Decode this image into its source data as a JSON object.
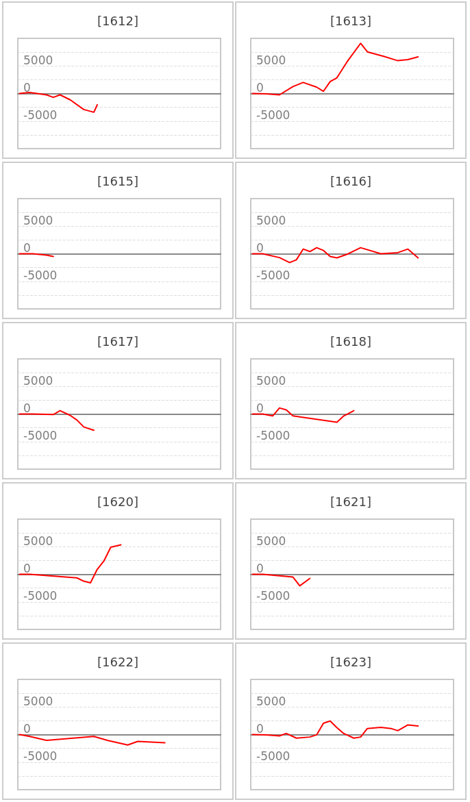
{
  "chart_data": [
    {
      "type": "line",
      "title": "[1612]",
      "categories": [
        null,
        null,
        null,
        null,
        null,
        null,
        null,
        null,
        null,
        null,
        null,
        null,
        null,
        null,
        null,
        null,
        null,
        null,
        null,
        null,
        null,
        null,
        null,
        null,
        null,
        null,
        null,
        null,
        null,
        null,
        null,
        null,
        null,
        null,
        null,
        null,
        null,
        null,
        null,
        null,
        null,
        null,
        null,
        null,
        null,
        null,
        null,
        null,
        null,
        null,
        null,
        null,
        null,
        null,
        null,
        null,
        null,
        null,
        null,
        null
      ],
      "values": [
        0,
        null,
        null,
        200,
        null,
        null,
        null,
        null,
        -250,
        null,
        -700,
        null,
        -250,
        null,
        null,
        -1150,
        null,
        null,
        null,
        -2900,
        null,
        null,
        -3400,
        -2050,
        null,
        null,
        null,
        null,
        null,
        null,
        null,
        null,
        null,
        null,
        null,
        null,
        null,
        null,
        null,
        null,
        null,
        null,
        null,
        null,
        null,
        null,
        null,
        null,
        null,
        null,
        null,
        null,
        null,
        null,
        null,
        null,
        null,
        null,
        null,
        null
      ],
      "color": "#ff0000",
      "ylim": [
        -10000,
        10000
      ],
      "yticks": [
        {
          "value": -7500,
          "label": null
        },
        -5000,
        {
          "value": -2500,
          "label": null
        },
        0,
        {
          "value": 2500,
          "label": null
        },
        5000,
        {
          "value": 7500,
          "label": null
        }
      ],
      "grid": "y",
      "tick_labels": "y"
    },
    {
      "type": "line",
      "title": "[1613]",
      "categories": [
        null,
        null,
        null,
        null,
        null,
        null,
        null,
        null,
        null,
        null,
        null,
        null,
        null,
        null,
        null,
        null,
        null,
        null,
        null,
        null,
        null,
        null,
        null,
        null,
        null,
        null,
        null,
        null,
        null,
        null,
        null,
        null,
        null,
        null,
        null,
        null,
        null,
        null,
        null,
        null,
        null,
        null,
        null,
        null,
        null,
        null,
        null,
        null,
        null,
        null,
        null,
        null,
        null,
        null,
        null,
        null,
        null,
        null,
        null,
        null
      ],
      "values": [
        0,
        null,
        null,
        null,
        -50,
        null,
        null,
        null,
        -250,
        null,
        null,
        null,
        1250,
        null,
        null,
        2000,
        null,
        null,
        null,
        1150,
        null,
        400,
        null,
        2150,
        null,
        2850,
        null,
        null,
        5750,
        null,
        null,
        null,
        9100,
        null,
        7550,
        null,
        null,
        null,
        null,
        6700,
        null,
        null,
        null,
        5950,
        null,
        null,
        6150,
        null,
        null,
        6650,
        null,
        null,
        null,
        null,
        null,
        null,
        null,
        null,
        null,
        null
      ],
      "color": "#ff0000",
      "ylim": [
        -10000,
        10000
      ],
      "yticks": [
        {
          "value": -7500,
          "label": null
        },
        -5000,
        {
          "value": -2500,
          "label": null
        },
        0,
        {
          "value": 2500,
          "label": null
        },
        5000,
        {
          "value": 7500,
          "label": null
        }
      ],
      "grid": "y",
      "tick_labels": "y"
    },
    {
      "type": "line",
      "title": "[1615]",
      "categories": [
        null,
        null,
        null,
        null,
        null,
        null,
        null,
        null,
        null,
        null,
        null,
        null,
        null,
        null,
        null,
        null,
        null,
        null,
        null,
        null,
        null,
        null,
        null,
        null,
        null,
        null,
        null,
        null,
        null,
        null,
        null,
        null,
        null,
        null,
        null,
        null,
        null,
        null,
        null,
        null,
        null,
        null,
        null,
        null,
        null,
        null,
        null,
        null,
        null,
        null,
        null,
        null,
        null,
        null,
        null,
        null,
        null,
        null,
        null,
        null
      ],
      "values": [
        0,
        null,
        null,
        null,
        0,
        null,
        null,
        null,
        -250,
        null,
        -500,
        null,
        null,
        null,
        null,
        null,
        null,
        null,
        null,
        null,
        null,
        null,
        null,
        null,
        null,
        null,
        null,
        null,
        null,
        null,
        null,
        null,
        null,
        null,
        null,
        null,
        null,
        null,
        null,
        null,
        null,
        null,
        null,
        null,
        null,
        null,
        null,
        null,
        null,
        null,
        null,
        null,
        null,
        null,
        null,
        null,
        null,
        null,
        null,
        null
      ],
      "color": "#ff0000",
      "ylim": [
        -10000,
        10000
      ],
      "yticks": [
        {
          "value": -7500,
          "label": null
        },
        -5000,
        {
          "value": -2500,
          "label": null
        },
        0,
        {
          "value": 2500,
          "label": null
        },
        5000,
        {
          "value": 7500,
          "label": null
        }
      ],
      "grid": "y",
      "tick_labels": "y"
    },
    {
      "type": "line",
      "title": "[1616]",
      "categories": [
        null,
        null,
        null,
        null,
        null,
        null,
        null,
        null,
        null,
        null,
        null,
        null,
        null,
        null,
        null,
        null,
        null,
        null,
        null,
        null,
        null,
        null,
        null,
        null,
        null,
        null,
        null,
        null,
        null,
        null,
        null,
        null,
        null,
        null,
        null,
        null,
        null,
        null,
        null,
        null,
        null,
        null,
        null,
        null,
        null,
        null,
        null,
        null,
        null,
        null,
        null,
        null,
        null,
        null,
        null,
        null,
        null,
        null,
        null,
        null
      ],
      "values": [
        0,
        null,
        null,
        0,
        null,
        null,
        null,
        null,
        -700,
        null,
        null,
        -1600,
        null,
        -1100,
        null,
        850,
        null,
        400,
        null,
        1100,
        null,
        600,
        null,
        -500,
        null,
        -750,
        null,
        null,
        -100,
        null,
        null,
        null,
        1100,
        null,
        null,
        null,
        null,
        null,
        0,
        null,
        null,
        null,
        null,
        200,
        null,
        null,
        850,
        null,
        null,
        -750,
        null,
        null,
        null,
        null,
        null,
        null,
        null,
        null,
        null,
        null
      ],
      "color": "#ff0000",
      "ylim": [
        -10000,
        10000
      ],
      "yticks": [
        {
          "value": -7500,
          "label": null
        },
        -5000,
        {
          "value": -2500,
          "label": null
        },
        0,
        {
          "value": 2500,
          "label": null
        },
        5000,
        {
          "value": 7500,
          "label": null
        }
      ],
      "grid": "y",
      "tick_labels": "y"
    },
    {
      "type": "line",
      "title": "[1617]",
      "categories": [
        null,
        null,
        null,
        null,
        null,
        null,
        null,
        null,
        null,
        null,
        null,
        null,
        null,
        null,
        null,
        null,
        null,
        null,
        null,
        null,
        null,
        null,
        null,
        null,
        null,
        null,
        null,
        null,
        null,
        null,
        null,
        null,
        null,
        null,
        null,
        null,
        null,
        null,
        null,
        null,
        null,
        null,
        null,
        null,
        null,
        null,
        null,
        null,
        null,
        null,
        null,
        null,
        null,
        null,
        null,
        null,
        null,
        null,
        null,
        null
      ],
      "values": [
        0,
        null,
        null,
        null,
        0,
        null,
        null,
        null,
        null,
        null,
        -100,
        null,
        600,
        null,
        null,
        -250,
        null,
        -1100,
        null,
        -2350,
        null,
        null,
        -2950,
        null,
        null,
        null,
        null,
        null,
        null,
        null,
        null,
        null,
        null,
        null,
        null,
        null,
        null,
        null,
        null,
        null,
        null,
        null,
        null,
        null,
        null,
        null,
        null,
        null,
        null,
        null,
        null,
        null,
        null,
        null,
        null,
        null,
        null,
        null,
        null,
        null
      ],
      "color": "#ff0000",
      "ylim": [
        -10000,
        10000
      ],
      "yticks": [
        {
          "value": -7500,
          "label": null
        },
        -5000,
        {
          "value": -2500,
          "label": null
        },
        0,
        {
          "value": 2500,
          "label": null
        },
        5000,
        {
          "value": 7500,
          "label": null
        }
      ],
      "grid": "y",
      "tick_labels": "y"
    },
    {
      "type": "line",
      "title": "[1618]",
      "categories": [
        null,
        null,
        null,
        null,
        null,
        null,
        null,
        null,
        null,
        null,
        null,
        null,
        null,
        null,
        null,
        null,
        null,
        null,
        null,
        null,
        null,
        null,
        null,
        null,
        null,
        null,
        null,
        null,
        null,
        null,
        null,
        null,
        null,
        null,
        null,
        null,
        null,
        null,
        null,
        null,
        null,
        null,
        null,
        null,
        null,
        null,
        null,
        null,
        null,
        null,
        null,
        null,
        null,
        null,
        null,
        null,
        null,
        null,
        null,
        null
      ],
      "values": [
        0,
        null,
        null,
        0,
        null,
        null,
        -350,
        null,
        1100,
        null,
        750,
        null,
        -350,
        null,
        null,
        null,
        null,
        null,
        null,
        null,
        null,
        null,
        null,
        null,
        null,
        -1500,
        null,
        -350,
        null,
        null,
        600,
        null,
        null,
        null,
        null,
        null,
        null,
        null,
        null,
        null,
        null,
        null,
        null,
        null,
        null,
        null,
        null,
        null,
        null,
        null,
        null,
        null,
        null,
        null,
        null,
        null,
        null,
        null,
        null,
        null
      ],
      "color": "#ff0000",
      "ylim": [
        -10000,
        10000
      ],
      "yticks": [
        {
          "value": -7500,
          "label": null
        },
        -5000,
        {
          "value": -2500,
          "label": null
        },
        0,
        {
          "value": 2500,
          "label": null
        },
        5000,
        {
          "value": 7500,
          "label": null
        }
      ],
      "grid": "y",
      "tick_labels": "y"
    },
    {
      "type": "line",
      "title": "[1620]",
      "categories": [
        null,
        null,
        null,
        null,
        null,
        null,
        null,
        null,
        null,
        null,
        null,
        null,
        null,
        null,
        null,
        null,
        null,
        null,
        null,
        null,
        null,
        null,
        null,
        null,
        null,
        null,
        null,
        null,
        null,
        null,
        null,
        null,
        null,
        null,
        null,
        null,
        null,
        null,
        null,
        null,
        null,
        null,
        null,
        null,
        null,
        null,
        null,
        null,
        null,
        null,
        null,
        null,
        null,
        null,
        null,
        null,
        null,
        null,
        null,
        null
      ],
      "values": [
        0,
        null,
        null,
        0,
        null,
        null,
        null,
        null,
        null,
        null,
        null,
        null,
        null,
        null,
        null,
        null,
        null,
        -650,
        null,
        -1250,
        null,
        -1550,
        null,
        900,
        null,
        2450,
        null,
        4900,
        null,
        null,
        5350,
        null,
        null,
        null,
        null,
        null,
        null,
        null,
        null,
        null,
        null,
        null,
        null,
        null,
        null,
        null,
        null,
        null,
        null,
        null,
        null,
        null,
        null,
        null,
        null,
        null,
        null,
        null,
        null,
        null
      ],
      "color": "#ff0000",
      "ylim": [
        -10000,
        10000
      ],
      "yticks": [
        {
          "value": -7500,
          "label": null
        },
        -5000,
        {
          "value": -2500,
          "label": null
        },
        0,
        {
          "value": 2500,
          "label": null
        },
        5000,
        {
          "value": 7500,
          "label": null
        }
      ],
      "grid": "y",
      "tick_labels": "y"
    },
    {
      "type": "line",
      "title": "[1621]",
      "categories": [
        null,
        null,
        null,
        null,
        null,
        null,
        null,
        null,
        null,
        null,
        null,
        null,
        null,
        null,
        null,
        null,
        null,
        null,
        null,
        null,
        null,
        null,
        null,
        null,
        null,
        null,
        null,
        null,
        null,
        null,
        null,
        null,
        null,
        null,
        null,
        null,
        null,
        null,
        null,
        null,
        null,
        null,
        null,
        null,
        null,
        null,
        null,
        null,
        null,
        null,
        null,
        null,
        null,
        null,
        null,
        null,
        null,
        null,
        null,
        null
      ],
      "values": [
        0,
        null,
        null,
        0,
        null,
        null,
        null,
        null,
        null,
        null,
        null,
        null,
        -500,
        null,
        -2100,
        null,
        null,
        -750,
        null,
        null,
        null,
        null,
        null,
        null,
        null,
        null,
        null,
        null,
        null,
        null,
        null,
        null,
        null,
        null,
        null,
        null,
        null,
        null,
        null,
        null,
        null,
        null,
        null,
        null,
        null,
        null,
        null,
        null,
        null,
        null,
        null,
        null,
        null,
        null,
        null,
        null,
        null,
        null,
        null,
        null
      ],
      "color": "#ff0000",
      "ylim": [
        -10000,
        10000
      ],
      "yticks": [
        {
          "value": -7500,
          "label": null
        },
        -5000,
        {
          "value": -2500,
          "label": null
        },
        0,
        {
          "value": 2500,
          "label": null
        },
        5000,
        {
          "value": 7500,
          "label": null
        }
      ],
      "grid": "y",
      "tick_labels": "y"
    },
    {
      "type": "line",
      "title": "[1622]",
      "categories": [
        null,
        null,
        null,
        null,
        null,
        null,
        null,
        null,
        null,
        null,
        null,
        null,
        null,
        null,
        null,
        null,
        null,
        null,
        null,
        null,
        null,
        null,
        null,
        null,
        null,
        null,
        null,
        null,
        null,
        null,
        null,
        null,
        null,
        null,
        null,
        null,
        null,
        null,
        null,
        null,
        null,
        null,
        null,
        null,
        null,
        null,
        null,
        null,
        null,
        null,
        null,
        null,
        null,
        null,
        null,
        null,
        null,
        null,
        null,
        null
      ],
      "values": [
        0,
        null,
        null,
        -350,
        null,
        null,
        null,
        null,
        -1050,
        null,
        null,
        null,
        null,
        null,
        null,
        null,
        null,
        null,
        null,
        null,
        null,
        null,
        -350,
        null,
        null,
        null,
        -1050,
        null,
        null,
        null,
        null,
        null,
        -1900,
        null,
        null,
        -1250,
        null,
        null,
        null,
        null,
        null,
        null,
        null,
        -1500,
        null,
        null,
        null,
        null,
        null,
        null,
        null,
        null,
        null,
        null,
        null,
        null,
        null,
        null,
        null,
        null
      ],
      "color": "#ff0000",
      "ylim": [
        -10000,
        10000
      ],
      "yticks": [
        {
          "value": -7500,
          "label": null
        },
        -5000,
        {
          "value": -2500,
          "label": null
        },
        0,
        {
          "value": 2500,
          "label": null
        },
        5000,
        {
          "value": 7500,
          "label": null
        }
      ],
      "grid": "y",
      "tick_labels": "y"
    },
    {
      "type": "line",
      "title": "[1623]",
      "categories": [
        null,
        null,
        null,
        null,
        null,
        null,
        null,
        null,
        null,
        null,
        null,
        null,
        null,
        null,
        null,
        null,
        null,
        null,
        null,
        null,
        null,
        null,
        null,
        null,
        null,
        null,
        null,
        null,
        null,
        null,
        null,
        null,
        null,
        null,
        null,
        null,
        null,
        null,
        null,
        null,
        null,
        null,
        null,
        null,
        null,
        null,
        null,
        null,
        null,
        null,
        null,
        null,
        null,
        null,
        null,
        null,
        null,
        null,
        null,
        null
      ],
      "values": [
        0,
        null,
        null,
        null,
        -50,
        null,
        null,
        null,
        -250,
        null,
        200,
        null,
        null,
        -650,
        null,
        null,
        null,
        -450,
        null,
        -50,
        null,
        2050,
        null,
        2450,
        null,
        1250,
        null,
        200,
        null,
        null,
        -650,
        null,
        -450,
        null,
        1100,
        null,
        null,
        null,
        1300,
        null,
        null,
        1100,
        null,
        700,
        null,
        null,
        1750,
        null,
        null,
        1550,
        null,
        null,
        null,
        null,
        null,
        null,
        null,
        null,
        null,
        null
      ],
      "color": "#ff0000",
      "ylim": [
        -10000,
        10000
      ],
      "yticks": [
        {
          "value": -7500,
          "label": null
        },
        -5000,
        {
          "value": -2500,
          "label": null
        },
        0,
        {
          "value": 2500,
          "label": null
        },
        5000,
        {
          "value": 7500,
          "label": null
        }
      ],
      "grid": "y",
      "tick_labels": "y"
    }
  ]
}
